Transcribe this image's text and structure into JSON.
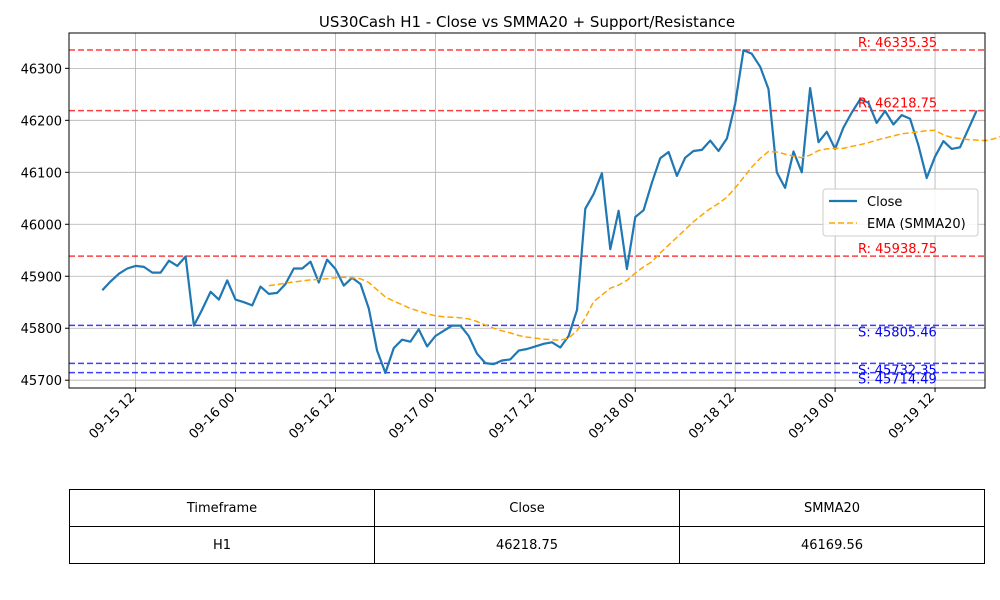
{
  "chart_data": {
    "type": "line",
    "title": "US30Cash H1 - Close vs SMMA20 + Support/Resistance",
    "xlabel": "",
    "ylabel": "",
    "x_range": [
      "2023-09-15 04:00",
      "2023-09-19 18:00"
    ],
    "ylim": [
      45685,
      46368
    ],
    "y_ticks": [
      45700,
      45800,
      45900,
      46000,
      46100,
      46200,
      46300
    ],
    "x_ticks": [
      {
        "t": "2023-09-15 12:00",
        "label": "09-15 12"
      },
      {
        "t": "2023-09-16 00:00",
        "label": "09-16 00"
      },
      {
        "t": "2023-09-16 12:00",
        "label": "09-16 12"
      },
      {
        "t": "2023-09-17 00:00",
        "label": "09-17 00"
      },
      {
        "t": "2023-09-17 12:00",
        "label": "09-17 12"
      },
      {
        "t": "2023-09-18 00:00",
        "label": "09-18 00"
      },
      {
        "t": "2023-09-18 12:00",
        "label": "09-18 12"
      },
      {
        "t": "2023-09-19 00:00",
        "label": "09-19 00"
      },
      {
        "t": "2023-09-19 12:00",
        "label": "09-19 12"
      }
    ],
    "grid": true,
    "legend_position": "right",
    "series": [
      {
        "name": "Close",
        "color": "#1f77b4",
        "style": "solid",
        "x_start": "2023-09-15 08:00",
        "x_step_hours": 1,
        "values": [
          45873,
          45890,
          45905,
          45915,
          45920,
          45918,
          45907,
          45907,
          45930,
          45920,
          45938,
          45805,
          45836,
          45870,
          45855,
          45892,
          45855,
          45850,
          45844,
          45880,
          45866,
          45868,
          45885,
          45915,
          45915,
          45928,
          45888,
          45932,
          45914,
          45882,
          45897,
          45885,
          45838,
          45757,
          45714,
          45762,
          45778,
          45774,
          45798,
          45765,
          45785,
          45795,
          45805,
          45805,
          45785,
          45751,
          45733,
          45731,
          45738,
          45740,
          45757,
          45760,
          45765,
          45770,
          45773,
          45763,
          45785,
          45835,
          46030,
          46058,
          46098,
          45952,
          46026,
          45914,
          46014,
          46027,
          46080,
          46127,
          46139,
          46093,
          46128,
          46141,
          46143,
          46161,
          46141,
          46165,
          46232,
          46335,
          46328,
          46303,
          46260,
          46100,
          46070,
          46140,
          46100,
          46262,
          46158,
          46178,
          46145,
          46186,
          46215,
          46240,
          46234,
          46195,
          46218,
          46192,
          46210,
          46203,
          46152,
          46089,
          46130,
          46160,
          46145,
          46148,
          46183,
          46219
        ]
      },
      {
        "name": "EMA (SMMA20)",
        "color": "#ffa500",
        "style": "dashed",
        "x_start": "2023-09-16 04:00",
        "x_step_hours": 1,
        "values": [
          45882,
          45884,
          45887,
          45889,
          45891,
          45893,
          45894,
          45895,
          45897,
          45898,
          45897,
          45895,
          45888,
          45874,
          45860,
          45852,
          45845,
          45838,
          45833,
          45828,
          45824,
          45822,
          45821,
          45820,
          45818,
          45813,
          45806,
          45800,
          45795,
          45791,
          45786,
          45783,
          45781,
          45779,
          45778,
          45777,
          45781,
          45795,
          45820,
          45851,
          45864,
          45877,
          45883,
          45892,
          45906,
          45918,
          45928,
          45945,
          45960,
          45975,
          45990,
          46005,
          46018,
          46030,
          46040,
          46052,
          46070,
          46090,
          46110,
          46127,
          46140,
          46139,
          46135,
          46131,
          46128,
          46133,
          46142,
          46145,
          46146,
          46146,
          46150,
          46153,
          46157,
          46162,
          46166,
          46170,
          46174,
          46176,
          46178,
          46180,
          46181,
          46172,
          46167,
          46165,
          46163,
          46162,
          46161,
          46164,
          46169.56
        ]
      }
    ],
    "levels": [
      {
        "kind": "resistance",
        "value": 46335.35,
        "label": "R: 46335.35",
        "color": "#ff0000"
      },
      {
        "kind": "resistance",
        "value": 46218.75,
        "label": "R: 46218.75",
        "color": "#ff0000"
      },
      {
        "kind": "resistance",
        "value": 45938.75,
        "label": "R: 45938.75",
        "color": "#ff0000"
      },
      {
        "kind": "support",
        "value": 45805.46,
        "label": "S: 45805.46",
        "color": "#0000ff"
      },
      {
        "kind": "support",
        "value": 45732.35,
        "label": "S: 45732.35",
        "color": "#0000ff"
      },
      {
        "kind": "support",
        "value": 45714.49,
        "label": "S: 45714.49",
        "color": "#0000ff"
      }
    ]
  },
  "summary_table": {
    "headers": [
      "Timeframe",
      "Close",
      "SMMA20"
    ],
    "row": [
      "H1",
      "46218.75",
      "46169.56"
    ]
  }
}
